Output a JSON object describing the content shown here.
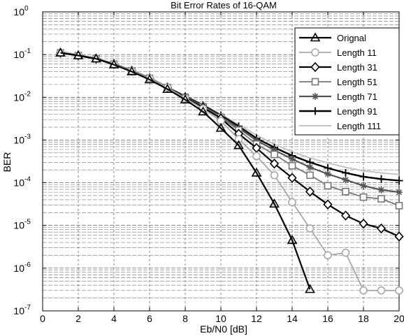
{
  "chart_data": {
    "type": "line",
    "title": "Bit Error Rates of 16-QAM",
    "xlabel": "Eb/N0 [dB]",
    "ylabel": "BER",
    "xlim": [
      0,
      20
    ],
    "ylim": [
      1e-07,
      1
    ],
    "yscale": "log",
    "grid": "major-and-minor, dashed",
    "legend_position": "top-right",
    "x_ticks": [
      0,
      2,
      4,
      6,
      8,
      10,
      12,
      14,
      16,
      18,
      20
    ],
    "x_tick_labels": [
      "0",
      "2",
      "4",
      "6",
      "8",
      "10",
      "12",
      "14",
      "16",
      "18",
      "20"
    ],
    "y_ticks": [
      {
        "base": "10",
        "exp": "0",
        "value": 1
      },
      {
        "base": "10",
        "exp": "-1",
        "value": 0.1
      },
      {
        "base": "10",
        "exp": "-2",
        "value": 0.01
      },
      {
        "base": "10",
        "exp": "-3",
        "value": 0.001
      },
      {
        "base": "10",
        "exp": "-4",
        "value": 0.0001
      },
      {
        "base": "10",
        "exp": "-5",
        "value": 1e-05
      },
      {
        "base": "10",
        "exp": "-6",
        "value": 1e-06
      },
      {
        "base": "10",
        "exp": "-7",
        "value": 1e-07
      }
    ],
    "series": [
      {
        "name": "Orignal",
        "marker": "triangle",
        "color": "#000000",
        "stroke": 2.2,
        "x": [
          1,
          2,
          3,
          4,
          5,
          6,
          7,
          8,
          9,
          10,
          11,
          12,
          13,
          14,
          15
        ],
        "y": [
          0.11,
          0.095,
          0.08,
          0.058,
          0.04,
          0.026,
          0.0155,
          0.0088,
          0.0046,
          0.0019,
          0.00075,
          0.00017,
          3.2e-05,
          4.5e-06,
          3.2e-07
        ]
      },
      {
        "name": "Length 11",
        "marker": "circle",
        "color": "#a8a8a8",
        "stroke": 1.8,
        "x": [
          1,
          2,
          3,
          4,
          5,
          6,
          7,
          8,
          9,
          10,
          11,
          12,
          13,
          14,
          15,
          16,
          17,
          18,
          19,
          20
        ],
        "y": [
          0.11,
          0.095,
          0.08,
          0.06,
          0.042,
          0.028,
          0.017,
          0.0095,
          0.0054,
          0.0028,
          0.00105,
          0.00042,
          0.00015,
          3.5e-05,
          8.5e-06,
          2e-06,
          2.3e-06,
          3e-07,
          3e-07,
          3e-07
        ]
      },
      {
        "name": "Length 31",
        "marker": "diamond",
        "color": "#000000",
        "stroke": 2.2,
        "x": [
          1,
          2,
          3,
          4,
          5,
          6,
          7,
          8,
          9,
          10,
          11,
          12,
          13,
          14,
          15,
          16,
          17,
          18,
          19,
          20
        ],
        "y": [
          0.11,
          0.095,
          0.08,
          0.06,
          0.042,
          0.028,
          0.017,
          0.0098,
          0.0058,
          0.0032,
          0.0014,
          0.00065,
          0.00028,
          0.00013,
          6.2e-05,
          3.1e-05,
          1.7e-05,
          1.1e-05,
          8.5e-06,
          5.5e-06
        ]
      },
      {
        "name": "Length 51",
        "marker": "square",
        "color": "#777777",
        "stroke": 1.8,
        "x": [
          1,
          2,
          3,
          4,
          5,
          6,
          7,
          8,
          9,
          10,
          11,
          12,
          13,
          14,
          15,
          16,
          17,
          18,
          19,
          20
        ],
        "y": [
          0.11,
          0.095,
          0.08,
          0.06,
          0.042,
          0.028,
          0.017,
          0.01,
          0.006,
          0.0034,
          0.0017,
          0.0008,
          0.00046,
          0.00025,
          0.00015,
          8.5e-05,
          6.2e-05,
          4.6e-05,
          4.2e-05,
          2.9e-05
        ]
      },
      {
        "name": "Length 71",
        "marker": "star",
        "color": "#555555",
        "stroke": 2.2,
        "x": [
          1,
          2,
          3,
          4,
          5,
          6,
          7,
          8,
          9,
          10,
          11,
          12,
          13,
          14,
          15,
          16,
          17,
          18,
          19,
          20
        ],
        "y": [
          0.11,
          0.095,
          0.08,
          0.06,
          0.042,
          0.028,
          0.017,
          0.0102,
          0.0062,
          0.0036,
          0.0019,
          0.00098,
          0.00058,
          0.00036,
          0.00023,
          0.00016,
          0.000117,
          8.5e-05,
          6.8e-05,
          6e-05
        ]
      },
      {
        "name": "Length 91",
        "marker": "plus",
        "color": "#000000",
        "stroke": 2.4,
        "x": [
          1,
          2,
          3,
          4,
          5,
          6,
          7,
          8,
          9,
          10,
          11,
          12,
          13,
          14,
          15,
          16,
          17,
          18,
          19,
          20
        ],
        "y": [
          0.11,
          0.095,
          0.08,
          0.06,
          0.042,
          0.028,
          0.017,
          0.0105,
          0.0065,
          0.0038,
          0.0021,
          0.0011,
          0.00067,
          0.00043,
          0.0003,
          0.00022,
          0.00017,
          0.000138,
          0.000122,
          0.000112
        ]
      },
      {
        "name": "Length 111",
        "marker": "none",
        "color": "#c4c4c4",
        "stroke": 2.0,
        "x": [
          1,
          2,
          3,
          4,
          5,
          6,
          7,
          8,
          9,
          10,
          11,
          12,
          13,
          14,
          15,
          16,
          17,
          18,
          19,
          20
        ],
        "y": [
          0.12,
          0.1,
          0.082,
          0.062,
          0.043,
          0.029,
          0.0175,
          0.0108,
          0.0068,
          0.004,
          0.0023,
          0.0013,
          0.0008,
          0.00053,
          0.00038,
          0.00029,
          0.00023,
          0.00019,
          0.00017,
          0.000155
        ]
      }
    ]
  }
}
